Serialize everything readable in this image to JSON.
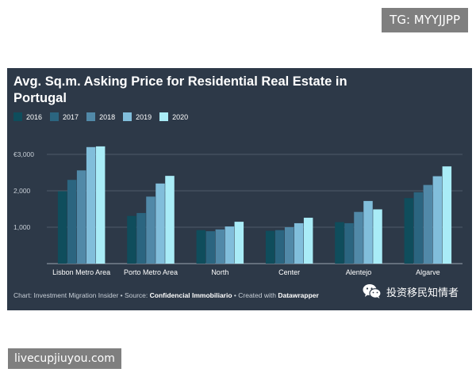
{
  "watermarks": {
    "top": "TG: MYYJJPP",
    "bottom": "livecupjiuyou.com"
  },
  "chart_data": {
    "type": "bar",
    "title": "Avg. Sq.m. Asking Price for Residential Real Estate in Portugal",
    "categories": [
      "Lisbon Metro Area",
      "Porto Metro Area",
      "North",
      "Center",
      "Alentejo",
      "Algarve"
    ],
    "series": [
      {
        "name": "2016",
        "color": "#0f4d5c",
        "values": [
          1990,
          1310,
          920,
          900,
          1140,
          1800
        ]
      },
      {
        "name": "2017",
        "color": "#2b6580",
        "values": [
          2300,
          1390,
          890,
          920,
          1110,
          1960
        ]
      },
      {
        "name": "2018",
        "color": "#5189a8",
        "values": [
          2560,
          1840,
          940,
          1000,
          1420,
          2160
        ]
      },
      {
        "name": "2019",
        "color": "#81bedb",
        "values": [
          3200,
          2200,
          1020,
          1110,
          1720,
          2400
        ]
      },
      {
        "name": "2020",
        "color": "#a9ecf7",
        "values": [
          3220,
          2410,
          1150,
          1260,
          1490,
          2670
        ]
      }
    ],
    "yticks": [
      "€3,000",
      "2,000",
      "1,000"
    ],
    "ylim": [
      0,
      3300
    ],
    "grid": true,
    "legend_position": "top-left"
  },
  "footer": {
    "prefix": "Chart: Investment Migration Insider • Source: ",
    "source": "Confidencial Immobiliario",
    "middle": " • Created with ",
    "tool": "Datawrapper"
  },
  "badge": {
    "text": "投资移民知情者",
    "icon": "wechat-icon"
  }
}
